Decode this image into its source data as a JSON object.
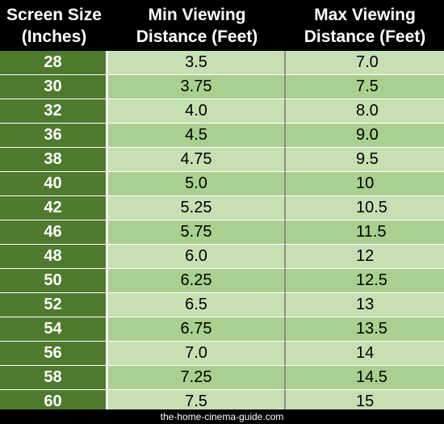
{
  "table": {
    "headers": [
      {
        "line1": "Screen Size",
        "line2": "(Inches)"
      },
      {
        "line1": "Min Viewing",
        "line2": "Distance (Feet)"
      },
      {
        "line1": "Max Viewing",
        "line2": "Distance (Feet)"
      }
    ],
    "rows": [
      {
        "size": "28",
        "min": "3.5",
        "max": "7.0"
      },
      {
        "size": "30",
        "min": "3.75",
        "max": "7.5"
      },
      {
        "size": "32",
        "min": "4.0",
        "max": "8.0"
      },
      {
        "size": "36",
        "min": "4.5",
        "max": "9.0"
      },
      {
        "size": "38",
        "min": "4.75",
        "max": "9.5"
      },
      {
        "size": "40",
        "min": "5.0",
        "max": "10"
      },
      {
        "size": "42",
        "min": "5.25",
        "max": "10.5"
      },
      {
        "size": "46",
        "min": "5.75",
        "max": "11.5"
      },
      {
        "size": "48",
        "min": "6.0",
        "max": "12"
      },
      {
        "size": "50",
        "min": "6.25",
        "max": "12.5"
      },
      {
        "size": "52",
        "min": "6.5",
        "max": "13"
      },
      {
        "size": "54",
        "min": "6.75",
        "max": "13.5"
      },
      {
        "size": "56",
        "min": "7.0",
        "max": "14"
      },
      {
        "size": "58",
        "min": "7.25",
        "max": "14.5"
      },
      {
        "size": "60",
        "min": "7.5",
        "max": "15"
      }
    ]
  },
  "footer": {
    "text": "the-home-cinema-guide.com"
  },
  "colors": {
    "header_bg": "#000000",
    "size_column_bg": "#4e7a2e",
    "row_light": "#c6e0b4",
    "row_dark": "#a9d08e"
  }
}
